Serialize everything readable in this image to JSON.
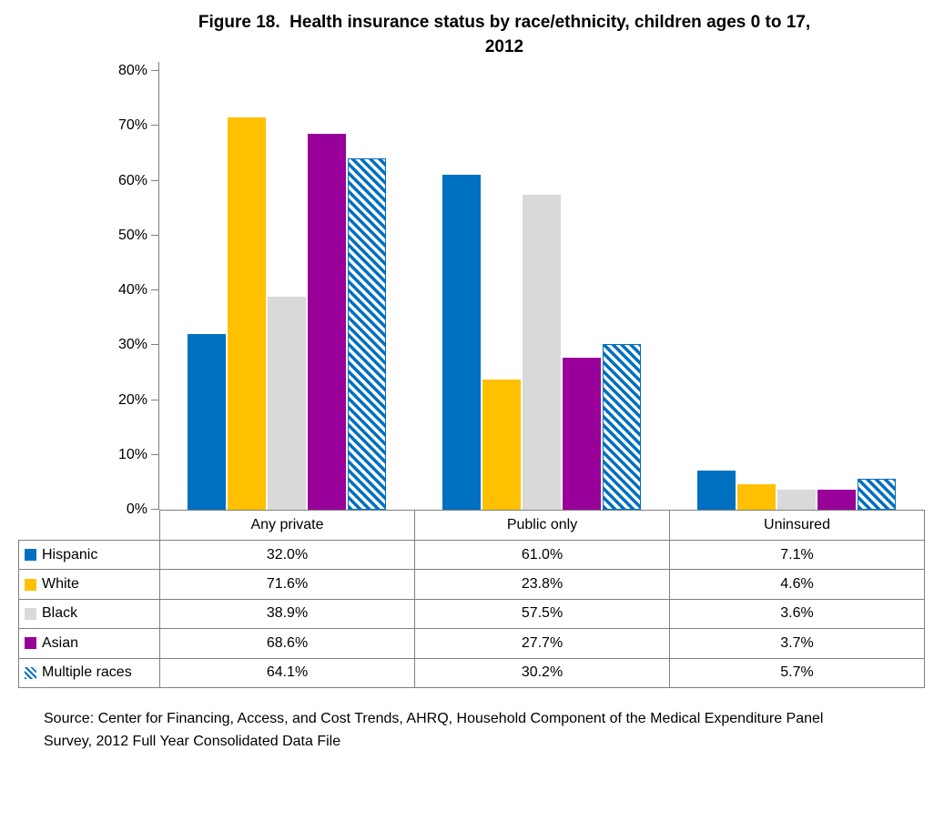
{
  "figure": {
    "title_lines": [
      "Figure 18.  Health insurance status by race/ethnicity, children ages 0 to 17,",
      "2012"
    ],
    "source_lines": [
      "Source: Center for Financing, Access, and Cost Trends, AHRQ, Household Component of the Medical Expenditure Panel",
      "Survey, 2012 Full Year Consolidated Data File"
    ]
  },
  "chart_data": {
    "type": "bar",
    "title": "Figure 18. Health insurance status by race/ethnicity, children ages 0 to 17, 2012",
    "categories": [
      "Any private",
      "Public only",
      "Uninsured"
    ],
    "series": [
      {
        "name": "Hispanic",
        "color": "#0070C0",
        "fill": "solid",
        "values": [
          32.0,
          61.0,
          7.1
        ]
      },
      {
        "name": "White",
        "color": "#FFC000",
        "fill": "solid",
        "values": [
          71.6,
          23.8,
          4.6
        ]
      },
      {
        "name": "Black",
        "color": "#D9D9D9",
        "fill": "solid",
        "values": [
          38.9,
          57.5,
          3.6
        ]
      },
      {
        "name": "Asian",
        "color": "#990099",
        "fill": "solid",
        "values": [
          68.6,
          27.7,
          3.7
        ]
      },
      {
        "name": "Multiple races",
        "color": "#0070C0",
        "fill": "diagonal-hatch",
        "values": [
          64.1,
          30.2,
          5.7
        ]
      }
    ],
    "xlabel": "",
    "ylabel": "",
    "ylim": [
      0,
      80
    ],
    "yticks": [
      "0%",
      "10%",
      "20%",
      "30%",
      "40%",
      "50%",
      "60%",
      "70%",
      "80%"
    ],
    "value_display_format": "0.0%",
    "grid": false,
    "legend_position": "table-rows-left",
    "axis_color": "#808080",
    "table_border_color": "#7F7F7F"
  }
}
